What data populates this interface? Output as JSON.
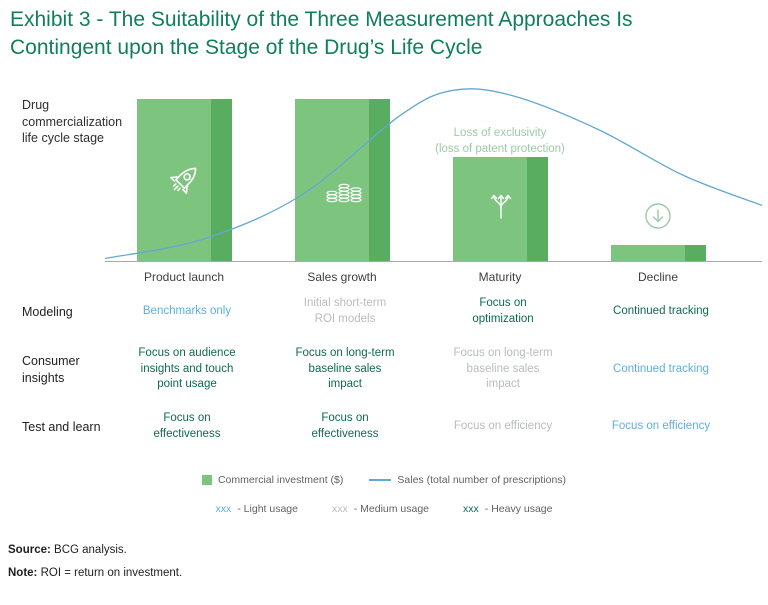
{
  "title": "Exhibit 3 - The Suitability of the Three Measurement Approaches Is Contingent upon the Stage of the Drug’s Life Cycle",
  "palette": {
    "title_green": "#0f7f5b",
    "bar_green": "#7dc57f",
    "bar_green_dark": "#58ad60",
    "curve_blue": "#63a8d2",
    "heavy_green": "#0c6b51",
    "light_blue": "#5cb0de",
    "medium_gray": "#b8beba",
    "annotation_green": "#9bcba6"
  },
  "chart": {
    "left_label": "Drug commercialization life cycle stage"
  },
  "chart_data": {
    "type": "bar",
    "categories": [
      "Product launch",
      "Sales growth",
      "Maturity",
      "Decline"
    ],
    "series": [
      {
        "name": "Commercial investment ($)",
        "type": "bar",
        "values": [
          100,
          100,
          64,
          10
        ]
      }
    ],
    "line": {
      "name": "Sales (total number of prescriptions)",
      "points": [
        [
          0,
          0.98
        ],
        [
          0.15,
          0.87
        ],
        [
          0.3,
          0.62
        ],
        [
          0.45,
          0.17
        ],
        [
          0.53,
          0.03
        ],
        [
          0.62,
          0.06
        ],
        [
          0.75,
          0.25
        ],
        [
          0.88,
          0.51
        ],
        [
          1,
          0.68
        ]
      ]
    },
    "annotation": {
      "line1": "Loss of exclusivity",
      "line2": "(loss of patent protection)"
    },
    "icons": {
      "product_launch": "rocket-icon",
      "sales_growth": "coins-icon",
      "maturity": "branching-arrows-icon",
      "decline": "down-arrow-circle-icon"
    },
    "xlabel": "",
    "ylabel": "",
    "grid": false,
    "legend_position": "bottom"
  },
  "matrix": {
    "rows": [
      {
        "label": "Modeling",
        "cells": [
          {
            "text": "Benchmarks only",
            "tone": "light"
          },
          {
            "text": "Initial short-term ROI models",
            "tone": "medium"
          },
          {
            "text": "Focus on optimization",
            "tone": "heavy"
          },
          {
            "text": "Continued tracking",
            "tone": "heavy"
          }
        ]
      },
      {
        "label": "Consumer insights",
        "cells": [
          {
            "text": "Focus on audience insights and touch point usage",
            "tone": "heavy"
          },
          {
            "text": "Focus on long-term baseline sales impact",
            "tone": "heavy"
          },
          {
            "text": "Focus on long-term baseline sales impact",
            "tone": "medium"
          },
          {
            "text": "Continued tracking",
            "tone": "light"
          }
        ]
      },
      {
        "label": "Test and learn",
        "cells": [
          {
            "text": "Focus on effectiveness",
            "tone": "heavy"
          },
          {
            "text": "Focus on effectiveness",
            "tone": "heavy"
          },
          {
            "text": "Focus on efficiency",
            "tone": "medium"
          },
          {
            "text": "Focus on efficiency",
            "tone": "light"
          }
        ]
      }
    ]
  },
  "legend": {
    "usage": [
      {
        "prefix": "xxx",
        "text": " - Light usage",
        "tone": "light"
      },
      {
        "prefix": "xxx",
        "text": " - Medium usage",
        "tone": "medium"
      },
      {
        "prefix": "xxx",
        "text": " - Heavy usage",
        "tone": "heavy"
      }
    ]
  },
  "footer": {
    "source_label": "Source:",
    "source_text": " BCG analysis.",
    "note_label": "Note:",
    "note_text": " ROI = return on investment."
  }
}
